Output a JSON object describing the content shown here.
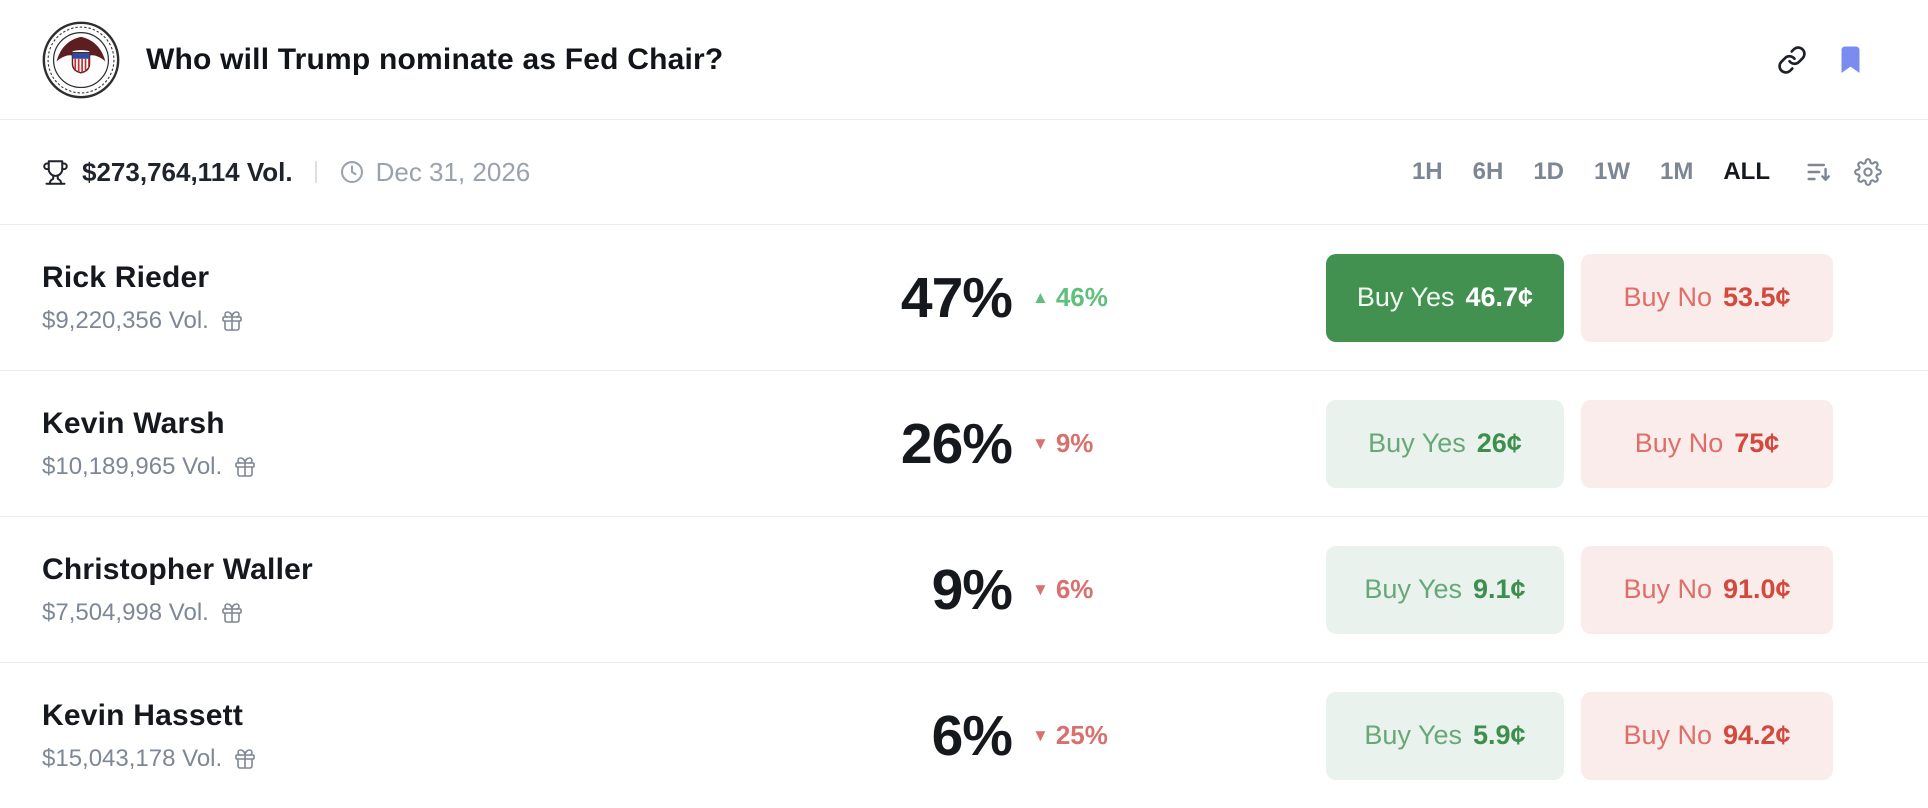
{
  "market": {
    "title": "Who will Trump nominate as Fed Chair?",
    "volume": "$273,764,114 Vol.",
    "end_date": "Dec 31, 2026"
  },
  "time_filters": [
    "1H",
    "6H",
    "1D",
    "1W",
    "1M",
    "ALL"
  ],
  "selected_filter": "ALL",
  "outcomes": [
    {
      "name": "Rick Rieder",
      "volume": "$9,220,356 Vol.",
      "chance": "47%",
      "delta": "46%",
      "delta_direction": "up",
      "buy_yes_label": "Buy Yes",
      "buy_yes_price": "46.7¢",
      "buy_no_label": "Buy No",
      "buy_no_price": "53.5¢",
      "yes_button_variant": "solid"
    },
    {
      "name": "Kevin Warsh",
      "volume": "$10,189,965 Vol.",
      "chance": "26%",
      "delta": "9%",
      "delta_direction": "down",
      "buy_yes_label": "Buy Yes",
      "buy_yes_price": "26¢",
      "buy_no_label": "Buy No",
      "buy_no_price": "75¢",
      "yes_button_variant": "tint"
    },
    {
      "name": "Christopher Waller",
      "volume": "$7,504,998 Vol.",
      "chance": "9%",
      "delta": "6%",
      "delta_direction": "down",
      "buy_yes_label": "Buy Yes",
      "buy_yes_price": "9.1¢",
      "buy_no_label": "Buy No",
      "buy_no_price": "91.0¢",
      "yes_button_variant": "tint"
    },
    {
      "name": "Kevin Hassett",
      "volume": "$15,043,178 Vol.",
      "chance": "6%",
      "delta": "25%",
      "delta_direction": "down",
      "buy_yes_label": "Buy Yes",
      "buy_yes_price": "5.9¢",
      "buy_no_label": "Buy No",
      "buy_no_price": "94.2¢",
      "yes_button_variant": "tint"
    }
  ],
  "icons": {
    "logo": "federal-reserve-seal",
    "header_right": [
      "link-icon",
      "bookmark-icon"
    ],
    "stats_left": [
      "trophy-icon",
      "clock-icon"
    ],
    "stats_right": [
      "sort-icon",
      "gear-icon"
    ],
    "row": [
      "gift-icon"
    ]
  },
  "colors": {
    "yes_solid_bg": "#439150",
    "yes_tint_bg": "#e9f2ec",
    "yes_text": "#3e8e4e",
    "no_bg": "#faeceb",
    "no_text": "#d3493d",
    "delta_up": "#5fbf7b",
    "delta_down": "#d8706d",
    "bookmark_blue": "#7b8cf1",
    "muted_gray": "#7e8795",
    "border": "#ebedf0"
  }
}
